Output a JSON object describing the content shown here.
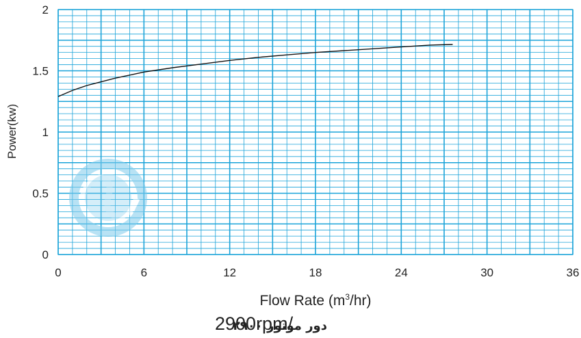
{
  "chart_data": {
    "type": "line",
    "title": "",
    "xlabel": "Flow Rate (m",
    "xlabel_sup": "3",
    "xlabel_tail": "/hr)",
    "ylabel": "Power(kw)",
    "xlim": [
      0,
      36
    ],
    "ylim": [
      0,
      2
    ],
    "x_ticks": [
      "0",
      "6",
      "12",
      "18",
      "24",
      "30",
      "36"
    ],
    "y_ticks": [
      "0",
      "0.5",
      "1",
      "1.5",
      "2"
    ],
    "grid": true,
    "colors": {
      "grid": "#1aa3d9",
      "curve": "#111111",
      "logo": "#7fcbec"
    },
    "series": [
      {
        "x": [
          0,
          1,
          2,
          3,
          4,
          5,
          6,
          8,
          10,
          12,
          14,
          16,
          18,
          20,
          22,
          24,
          26,
          27.6
        ],
        "values": [
          1.29,
          1.34,
          1.38,
          1.41,
          1.44,
          1.465,
          1.49,
          1.525,
          1.555,
          1.585,
          1.61,
          1.63,
          1.65,
          1.665,
          1.68,
          1.695,
          1.71,
          1.715
        ]
      }
    ]
  },
  "footer": {
    "speed_en": "2900rpm/",
    "speed_fa": "دور موتور ۲۹۰۰"
  },
  "logo": {
    "icon": "wave-circle-logo"
  }
}
